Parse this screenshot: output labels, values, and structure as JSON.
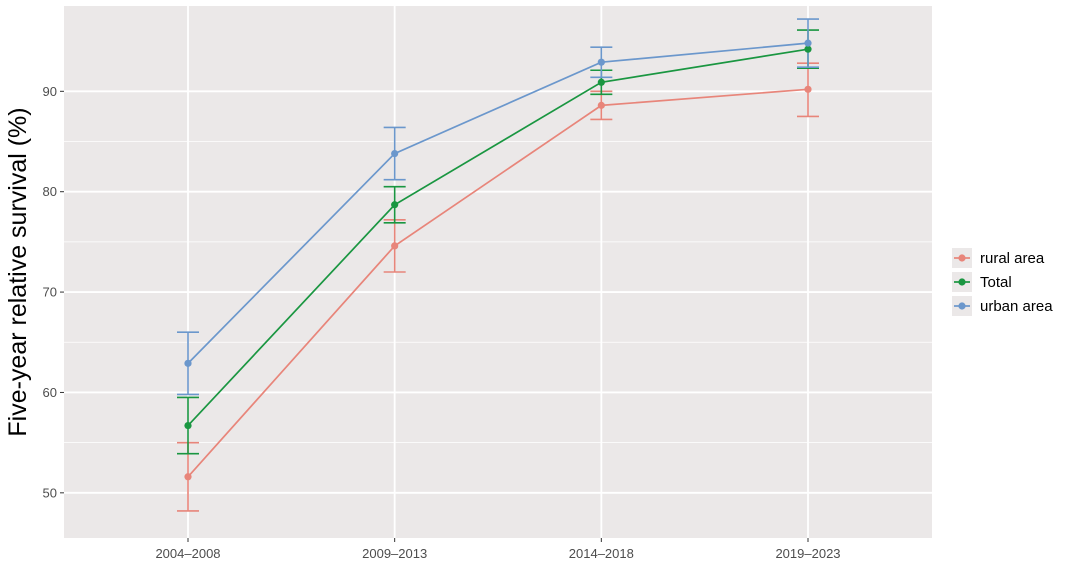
{
  "chart_data": {
    "type": "line",
    "title": "",
    "xlabel": "",
    "ylabel": "Five-year relative survival (%)",
    "categories": [
      "2004–2008",
      "2009–2013",
      "2014–2018",
      "2019–2023"
    ],
    "ylim": [
      45.5,
      98.5
    ],
    "yticks": [
      50,
      60,
      70,
      80,
      90
    ],
    "grid": true,
    "legend_position": "right",
    "series": [
      {
        "name": "rural area",
        "color": "#E8857A",
        "values": [
          51.6,
          74.6,
          88.6,
          90.2
        ],
        "lower": [
          48.2,
          72.0,
          87.2,
          87.5
        ],
        "upper": [
          55.0,
          77.2,
          90.0,
          92.8
        ]
      },
      {
        "name": "Total",
        "color": "#1A9641",
        "values": [
          56.7,
          78.7,
          90.9,
          94.2
        ],
        "lower": [
          53.9,
          76.9,
          89.7,
          92.3
        ],
        "upper": [
          59.5,
          80.5,
          92.1,
          96.1
        ]
      },
      {
        "name": "urban area",
        "color": "#6B97CC",
        "values": [
          62.9,
          83.8,
          92.9,
          94.8
        ],
        "lower": [
          59.8,
          81.2,
          91.4,
          92.4
        ],
        "upper": [
          66.0,
          86.4,
          94.4,
          97.2
        ]
      }
    ]
  }
}
